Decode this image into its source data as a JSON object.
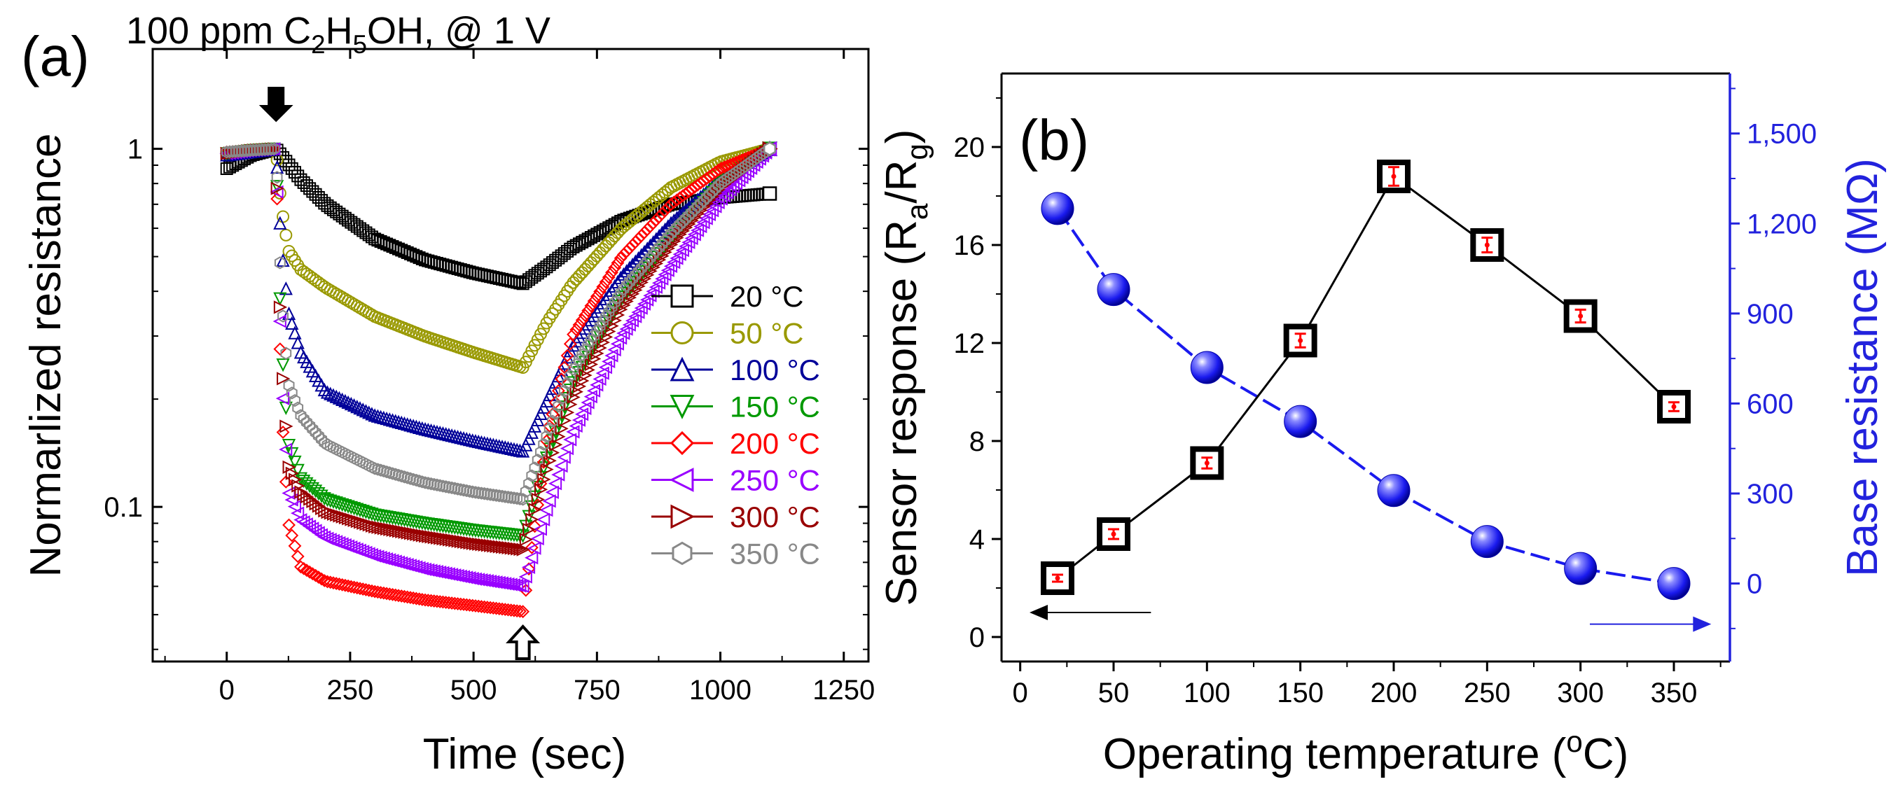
{
  "figure": {
    "panel_a_label": "(a)",
    "panel_a_title": "100 ppm C2H5OH, @ 1 V",
    "panel_a_title_parts": [
      "100 ppm C",
      "2",
      "H",
      "5",
      "OH, @ 1 V"
    ],
    "panel_b_label": "(b)"
  },
  "colors": {
    "axis": "#000000",
    "blue_axis": "#2222dd",
    "sphere": "#1a1aee",
    "error_bar": "#ff0000",
    "series": [
      "#000000",
      "#999900",
      "#000099",
      "#009900",
      "#ff0000",
      "#9900ff",
      "#990000",
      "#888888"
    ]
  },
  "chart_data": [
    {
      "type": "line",
      "panel": "a",
      "xlabel": "Time (sec)",
      "ylabel": "Normarlized resistance",
      "yscale": "log",
      "xlim": [
        -150,
        1300
      ],
      "ylim": [
        0.037,
        1.9
      ],
      "xticks": [
        0,
        250,
        500,
        750,
        1000,
        1250
      ],
      "xtick_labels": [
        "0",
        "250",
        "500",
        "750",
        "1000",
        "1250"
      ],
      "yticks": [
        1,
        0.1
      ],
      "ytick_labels": [
        "1",
        "0.1"
      ],
      "annotations": [
        {
          "type": "gas-on-arrow",
          "x": 100,
          "y": 1.3,
          "style": "filled"
        },
        {
          "type": "gas-off-arrow",
          "x": 600,
          "y": 0.044,
          "style": "hollow"
        }
      ],
      "legend_position": "right",
      "series": [
        {
          "name": "20 °C",
          "marker": "square",
          "color_index": 0,
          "x": [
            0,
            50,
            100,
            150,
            200,
            300,
            400,
            500,
            600,
            650,
            700,
            800,
            900,
            1000,
            1100
          ],
          "y": [
            0.88,
            0.96,
            1.0,
            0.82,
            0.7,
            0.56,
            0.49,
            0.45,
            0.42,
            0.47,
            0.53,
            0.63,
            0.7,
            0.73,
            0.75
          ]
        },
        {
          "name": "50 °C",
          "marker": "circle",
          "color_index": 1,
          "x": [
            0,
            50,
            100,
            110,
            125,
            150,
            200,
            300,
            400,
            500,
            600,
            650,
            700,
            800,
            900,
            1000,
            1100
          ],
          "y": [
            0.97,
            0.99,
            1.0,
            0.7,
            0.52,
            0.46,
            0.41,
            0.34,
            0.3,
            0.27,
            0.245,
            0.33,
            0.42,
            0.6,
            0.78,
            0.92,
            1.0
          ]
        },
        {
          "name": "100 °C",
          "marker": "triangle-up",
          "color_index": 2,
          "x": [
            0,
            50,
            100,
            110,
            125,
            150,
            200,
            300,
            400,
            500,
            600,
            650,
            700,
            800,
            900,
            1000,
            1100
          ],
          "y": [
            0.96,
            0.98,
            1.0,
            0.55,
            0.35,
            0.27,
            0.21,
            0.18,
            0.165,
            0.153,
            0.143,
            0.2,
            0.28,
            0.44,
            0.62,
            0.82,
            1.0
          ]
        },
        {
          "name": "150 °C",
          "marker": "triangle-down",
          "color_index": 3,
          "x": [
            0,
            50,
            100,
            110,
            125,
            150,
            200,
            300,
            400,
            500,
            600,
            650,
            700,
            800,
            900,
            1000,
            1100
          ],
          "y": [
            0.97,
            0.99,
            1.0,
            0.3,
            0.15,
            0.12,
            0.105,
            0.095,
            0.09,
            0.086,
            0.083,
            0.14,
            0.22,
            0.38,
            0.56,
            0.8,
            1.0
          ]
        },
        {
          "name": "200 °C",
          "marker": "diamond",
          "color_index": 4,
          "x": [
            0,
            50,
            100,
            110,
            125,
            150,
            200,
            300,
            400,
            500,
            600,
            650,
            700,
            800,
            900,
            1000,
            1100
          ],
          "y": [
            0.98,
            0.99,
            1.0,
            0.2,
            0.09,
            0.068,
            0.062,
            0.058,
            0.055,
            0.053,
            0.051,
            0.16,
            0.3,
            0.5,
            0.7,
            0.88,
            1.0
          ]
        },
        {
          "name": "250 °C",
          "marker": "triangle-left",
          "color_index": 5,
          "x": [
            0,
            50,
            100,
            110,
            125,
            150,
            200,
            300,
            400,
            500,
            600,
            650,
            700,
            800,
            900,
            1000,
            1100
          ],
          "y": [
            0.97,
            0.99,
            1.0,
            0.25,
            0.11,
            0.092,
            0.082,
            0.073,
            0.067,
            0.063,
            0.06,
            0.1,
            0.16,
            0.3,
            0.47,
            0.72,
            1.0
          ]
        },
        {
          "name": "300 °C",
          "marker": "triangle-right",
          "color_index": 6,
          "x": [
            0,
            50,
            100,
            110,
            125,
            150,
            200,
            300,
            400,
            500,
            600,
            650,
            700,
            800,
            900,
            1000,
            1100
          ],
          "y": [
            0.97,
            0.99,
            1.0,
            0.28,
            0.13,
            0.11,
            0.097,
            0.088,
            0.083,
            0.079,
            0.076,
            0.13,
            0.2,
            0.36,
            0.54,
            0.78,
            1.0
          ]
        },
        {
          "name": "350 °C",
          "marker": "hexagon",
          "color_index": 7,
          "x": [
            0,
            50,
            100,
            110,
            125,
            150,
            200,
            300,
            400,
            500,
            600,
            650,
            700,
            800,
            900,
            1000,
            1100
          ],
          "y": [
            0.98,
            0.99,
            1.0,
            0.4,
            0.22,
            0.18,
            0.15,
            0.128,
            0.117,
            0.11,
            0.105,
            0.16,
            0.24,
            0.4,
            0.58,
            0.8,
            1.0
          ]
        }
      ]
    },
    {
      "type": "line",
      "panel": "b",
      "xlabel": "Operating temperature (°C)",
      "xlabel_parts": [
        "Operating temperature (",
        "o",
        "C)"
      ],
      "ylabel": "Sensor response (Ra/Rg)",
      "ylabel_parts": [
        "Sensor response (R",
        "a",
        "/R",
        "g",
        ")"
      ],
      "y2label": "Base resistance (MΩ)",
      "xlim": [
        -10,
        380
      ],
      "ylim": [
        -1,
        23
      ],
      "y2lim": [
        -260,
        1700
      ],
      "xticks": [
        0,
        50,
        100,
        150,
        200,
        250,
        300,
        350
      ],
      "xtick_labels": [
        "0",
        "50",
        "100",
        "150",
        "200",
        "250",
        "300",
        "350"
      ],
      "yticks": [
        0,
        4,
        8,
        12,
        16,
        20
      ],
      "ytick_labels": [
        "0",
        "4",
        "8",
        "12",
        "16",
        "20"
      ],
      "y2ticks": [
        0,
        300,
        600,
        900,
        1200,
        1500
      ],
      "y2tick_labels": [
        "0",
        "300",
        "600",
        "900",
        "1,200",
        "1,500"
      ],
      "annotations": [
        {
          "type": "axis-arrow",
          "axis": "left",
          "x_from": 70,
          "x_to": 5,
          "y": 1.0
        },
        {
          "type": "axis-arrow",
          "axis": "right",
          "x_from": 305,
          "x_to": 370,
          "y": 0.0
        }
      ],
      "series": [
        {
          "name": "Sensor response",
          "axis": "left",
          "marker": "square",
          "x": [
            20,
            50,
            100,
            150,
            200,
            250,
            300,
            350
          ],
          "y": [
            2.4,
            4.2,
            7.1,
            12.1,
            18.8,
            16.0,
            13.1,
            9.4
          ],
          "err": [
            0.12,
            0.2,
            0.22,
            0.28,
            0.38,
            0.3,
            0.26,
            0.18
          ]
        },
        {
          "name": "Base resistance",
          "axis": "right",
          "marker": "sphere",
          "x": [
            20,
            50,
            100,
            150,
            200,
            250,
            300,
            350
          ],
          "y": [
            1250,
            980,
            720,
            540,
            310,
            140,
            50,
            0
          ]
        }
      ]
    }
  ]
}
